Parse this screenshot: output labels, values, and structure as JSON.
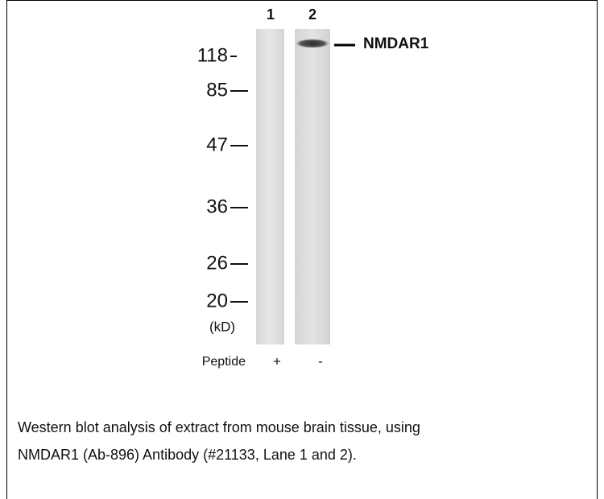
{
  "figure": {
    "lanes": [
      "1",
      "2"
    ],
    "markers": [
      "118",
      "85",
      "47",
      "36",
      "26",
      "20"
    ],
    "unit": "(kD)",
    "band_label": "NMDAR1",
    "peptide": {
      "label": "Peptide",
      "lane_values": [
        "+",
        "-"
      ]
    }
  },
  "caption": {
    "lines": [
      "Western blot analysis of extract from mouse brain tissue, using",
      "NMDAR1 (Ab-896) Antibody (#21133, Lane 1 and 2)."
    ]
  }
}
